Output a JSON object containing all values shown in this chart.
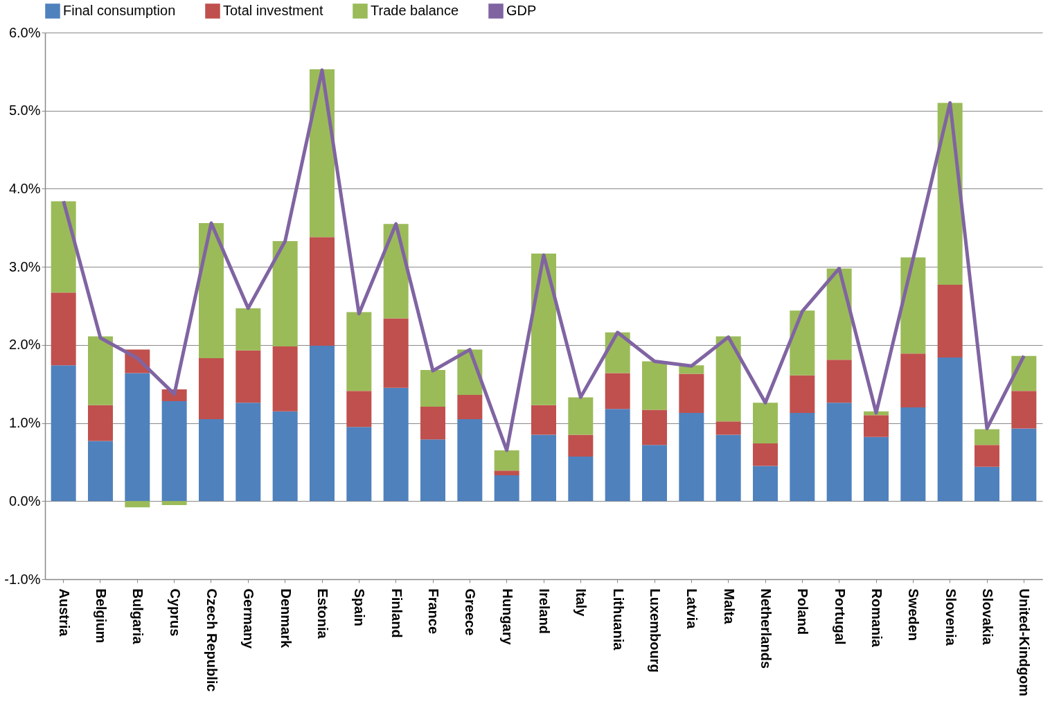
{
  "chart_data": {
    "type": "bar",
    "stacked": true,
    "categories": [
      "Austria",
      "Belgium",
      "Bulgaria",
      "Cyprus",
      "Czech Republic",
      "Germany",
      "Denmark",
      "Estonia",
      "Spain",
      "Finland",
      "France",
      "Greece",
      "Hungary",
      "Ireland",
      "Italy",
      "Lithuania",
      "Luxembourg",
      "Latvia",
      "Malta",
      "Netherlands",
      "Poland",
      "Portugal",
      "Romania",
      "Sweden",
      "Slovenia",
      "Slovakia",
      "United-Kindgom"
    ],
    "series": [
      {
        "name": "Final consumption",
        "color": "#4f81bd",
        "values": [
          1.74,
          0.77,
          1.64,
          1.28,
          1.05,
          1.26,
          1.15,
          1.99,
          0.95,
          1.45,
          0.79,
          1.05,
          0.33,
          0.85,
          0.57,
          1.18,
          0.72,
          1.13,
          0.85,
          0.45,
          1.13,
          1.26,
          0.82,
          1.2,
          1.84,
          0.44,
          0.93
        ]
      },
      {
        "name": "Total investment",
        "color": "#c0504d",
        "values": [
          0.93,
          0.46,
          0.3,
          0.15,
          0.78,
          0.67,
          0.83,
          1.39,
          0.46,
          0.89,
          0.42,
          0.31,
          0.06,
          0.38,
          0.28,
          0.46,
          0.45,
          0.5,
          0.17,
          0.29,
          0.48,
          0.55,
          0.28,
          0.69,
          0.93,
          0.28,
          0.48
        ]
      },
      {
        "name": "Trade balance",
        "color": "#9bbb59",
        "values": [
          1.17,
          0.88,
          -0.08,
          -0.05,
          1.73,
          0.54,
          1.35,
          2.15,
          1.01,
          1.21,
          0.47,
          0.58,
          0.26,
          1.94,
          0.48,
          0.52,
          0.62,
          0.11,
          1.09,
          0.52,
          0.83,
          1.17,
          0.05,
          1.23,
          2.33,
          0.2,
          0.45
        ]
      },
      {
        "name": "GDP",
        "type": "line",
        "color": "#8064a2",
        "values": [
          3.84,
          2.09,
          1.83,
          1.37,
          3.56,
          2.47,
          3.33,
          5.52,
          2.4,
          3.55,
          1.67,
          1.94,
          0.65,
          3.15,
          1.33,
          2.16,
          1.79,
          1.73,
          2.1,
          1.26,
          2.43,
          2.98,
          1.13,
          3.1,
          5.1,
          0.93,
          1.86
        ]
      }
    ],
    "ylim": [
      -1,
      6
    ],
    "yticks": [
      {
        "value": -1,
        "label": "-1.0%"
      },
      {
        "value": 0,
        "label": "0.0%"
      },
      {
        "value": 1,
        "label": "1.0%"
      },
      {
        "value": 2,
        "label": "2.0%"
      },
      {
        "value": 3,
        "label": "3.0%"
      },
      {
        "value": 4,
        "label": "4.0%"
      },
      {
        "value": 5,
        "label": "5.0%"
      },
      {
        "value": 6,
        "label": "6.0%"
      }
    ],
    "grid": "y",
    "legend": "top",
    "marker": "none",
    "line_style": "solid"
  }
}
